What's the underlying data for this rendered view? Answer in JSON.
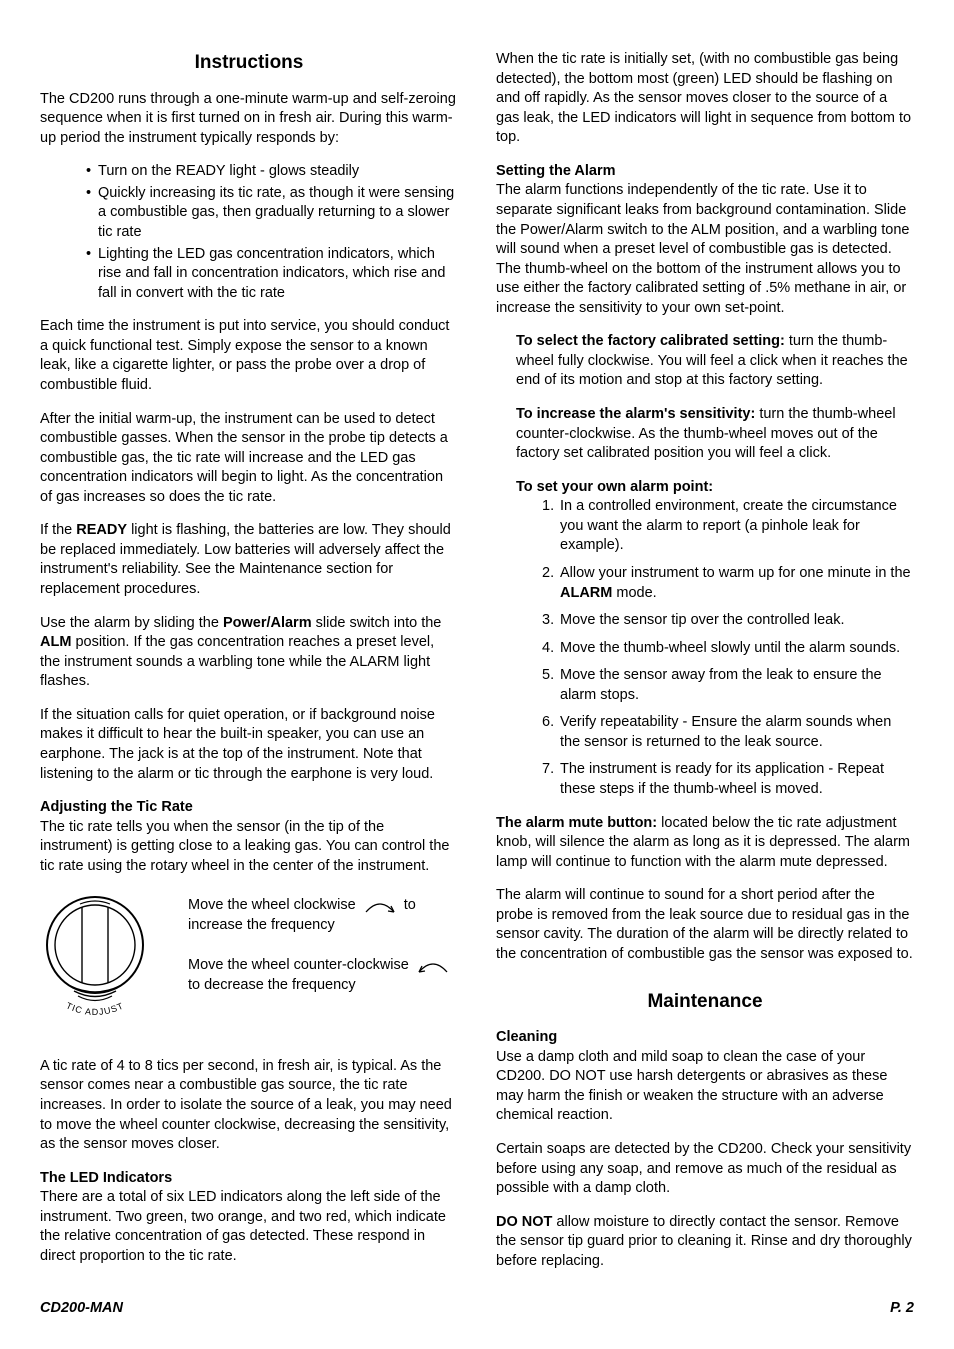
{
  "left": {
    "title": "Instructions",
    "p1": "The CD200 runs through a one-minute warm-up and self-zeroing sequence when it is first turned on in fresh air. During this warm-up period the instrument typically responds by:",
    "bullets": [
      "Turn on the READY light - glows steadily",
      "Quickly increasing its tic rate, as though it were sensing a combustible gas, then gradually returning to a slower tic rate",
      "Lighting the LED gas concentration indicators, which rise and fall in concentration indicators, which rise and fall in convert with the tic rate"
    ],
    "p2": "Each time the instrument is put into service, you should conduct a quick functional test. Simply expose the sensor to a known leak, like a cigarette lighter, or pass the probe over a drop of combustible fluid.",
    "p3": "After the initial warm-up, the instrument can be used to detect combustible gasses. When the sensor in the probe tip detects a combustible gas, the tic rate will increase and the LED gas concentration indicators will begin to light. As the concentration of gas increases so does the tic rate.",
    "p4a": "If the ",
    "p4_ready": "READY",
    "p4b": " light is flashing, the batteries are low. They should be replaced immediately. Low batteries will adversely affect the instrument's reliability. See the Maintenance section for replacement procedures.",
    "p5a": "Use the alarm by sliding the ",
    "p5_pa": "Power/Alarm",
    "p5b": " slide switch into the ",
    "p5_alm": "ALM",
    "p5c": " position. If the gas concentration reaches a preset level, the instrument sounds a warbling tone while the ALARM light flashes.",
    "p6": "If the situation calls for quiet operation, or if background noise makes it difficult to hear the built-in speaker, you can use an earphone. The jack is at the top of the instrument. Note that listening to the alarm or tic through the earphone is very loud.",
    "adj_head": "Adjusting the Tic Rate",
    "adj_p": "The tic rate tells you when the sensor (in the tip of the instrument) is getting close to a leaking gas. You can control the tic rate using the rotary wheel in the center of the instrument.",
    "dial_label": "TIC ADJUST",
    "cw_a": "Move the wheel clockwise ",
    "cw_b": " to increase the frequency",
    "ccw_a": "Move the wheel counter-clockwise ",
    "ccw_b": " to decrease the frequency",
    "p7": "A tic rate of 4 to 8 tics per second, in fresh air, is typical. As the sensor comes near a combustible gas source, the tic rate increases. In order to isolate the source of a leak, you may need to move the wheel counter clockwise, decreasing the sensitivity, as the sensor moves closer.",
    "led_head": "The LED Indicators",
    "led_p": "There are a total of six LED indicators along the left side of the instrument. Two green, two orange, and two red, which indicate the relative concentration of gas detected. These respond in direct proportion to the tic rate."
  },
  "right": {
    "p1": "When the tic rate is initially set, (with no combustible gas being detected), the bottom most (green) LED should be flashing on and off rapidly. As the sensor moves closer to the source of a gas leak, the LED indicators will light in sequence from bottom to top.",
    "sa_head": "Setting the Alarm",
    "sa_p": "The alarm functions independently of the tic rate. Use it to separate significant leaks from background contamination. Slide the Power/Alarm switch to the ALM position, and a warbling tone will sound when a preset level of combustible gas is detected. The thumb-wheel on the bottom of the instrument allows you to use either the factory calibrated setting of .5% methane in air, or increase the sensitivity to your own set-point.",
    "fc_lead": "To select the factory calibrated setting: ",
    "fc_body": "turn the thumb-wheel fully clockwise. You will feel a click when it reaches the end of its motion and stop at this factory setting.",
    "inc_lead": "To increase the alarm's sensitivity: ",
    "inc_body": "turn the thumb-wheel counter-clockwise. As the thumb-wheel moves out of the factory set calibrated position you will feel a click.",
    "own_head": "To set your own alarm point:",
    "steps": [
      "In a controlled environment, create the circumstance you want the alarm to report (a pinhole leak for example).",
      "Allow your instrument to warm up for one minute in the <b>ALARM</b> mode.",
      "Move the sensor tip over the controlled leak.",
      "Move the thumb-wheel slowly until the alarm sounds.",
      "Move the sensor away from the leak to ensure the alarm stops.",
      "Verify repeatability - Ensure the alarm sounds when the sensor is returned to the leak source.",
      "The instrument is ready for its application  - Repeat these steps if the thumb-wheel is moved."
    ],
    "mute_lead": "The alarm mute button: ",
    "mute_body": "located below the tic rate adjustment knob, will silence the alarm as long as it is depressed. The alarm lamp will continue to function with the alarm mute depressed.",
    "p2": "The alarm will continue to sound for a short period after the probe is removed from the leak source due to residual gas in the sensor cavity. The duration of the alarm will be directly related to the concentration of combustible gas the sensor was exposed to.",
    "maint_title": "Maintenance",
    "clean_head": "Cleaning",
    "clean_p1": "Use a damp cloth and mild soap to clean the case of your CD200. DO NOT use harsh detergents or abrasives as these may harm the finish or weaken the structure with an adverse chemical reaction.",
    "clean_p2": "Certain soaps are detected by the CD200. Check your sensitivity before using any soap, and remove as much of the residual as possible with a damp cloth.",
    "donot_lead": "DO NOT ",
    "donot_body": "allow moisture to directly contact the sensor. Remove the sensor tip guard prior to cleaning it. Rinse and dry thoroughly before replacing."
  },
  "footer": {
    "left": "CD200-MAN",
    "right": "P. 2"
  },
  "colors": {
    "text": "#000000",
    "bg": "#ffffff"
  }
}
